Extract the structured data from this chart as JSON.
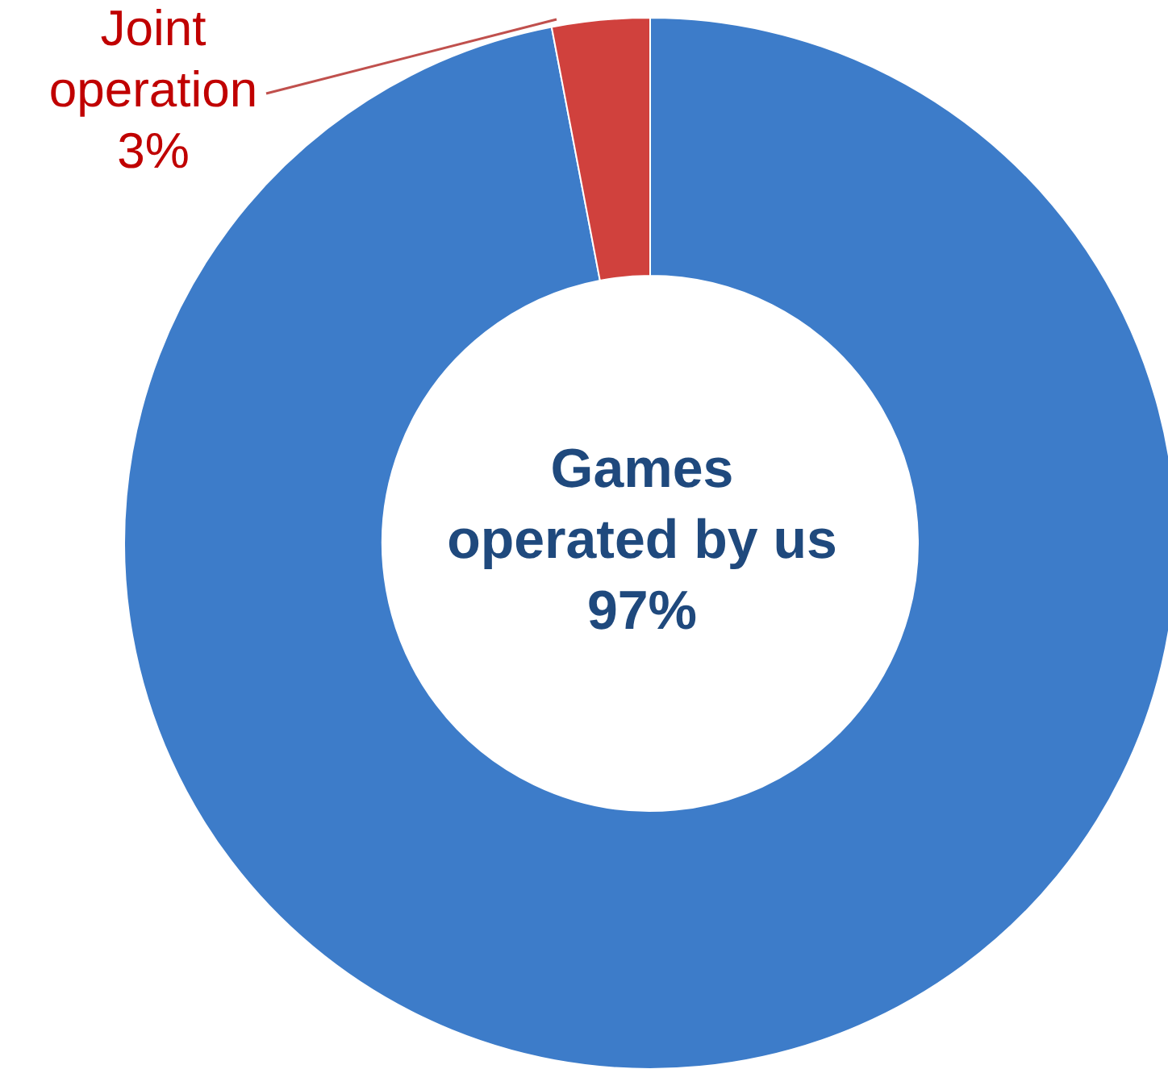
{
  "chart_data": {
    "type": "donut",
    "categories": [
      "Games\noperated by us",
      "Joint\noperation"
    ],
    "values": [
      97,
      3
    ],
    "value_labels": [
      "97%",
      "3%"
    ],
    "colors": [
      "#3d7cc9",
      "#d0413d"
    ]
  }
}
